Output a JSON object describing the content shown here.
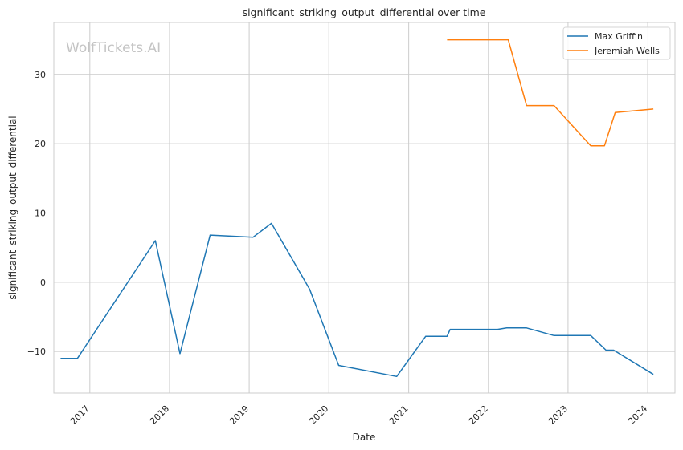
{
  "chart_data": {
    "type": "line",
    "title": "significant_striking_output_differential over time",
    "xlabel": "Date",
    "ylabel": "significant_striking_output_differential",
    "watermark": "WolfTickets.AI",
    "x_tick_labels": [
      "2017",
      "2018",
      "2019",
      "2020",
      "2021",
      "2022",
      "2023",
      "2024"
    ],
    "y_tick_labels": [
      "−10",
      "0",
      "10",
      "20",
      "30"
    ],
    "y_ticks": [
      -10,
      0,
      10,
      20,
      30
    ],
    "xlim": [
      "2016-07-20",
      "2024-05-05"
    ],
    "ylim": [
      -16.0,
      37.5
    ],
    "grid": true,
    "legend_position": "top-right",
    "series": [
      {
        "name": "Max Griffin",
        "color": "#1f77b4",
        "points": [
          [
            "2016-08-20",
            -11.0
          ],
          [
            "2016-11-05",
            -11.0
          ],
          [
            "2017-10-28",
            6.0
          ],
          [
            "2018-02-18",
            -10.3
          ],
          [
            "2018-07-06",
            6.8
          ],
          [
            "2019-01-19",
            6.5
          ],
          [
            "2019-04-13",
            8.5
          ],
          [
            "2019-10-05",
            -1.0
          ],
          [
            "2020-02-15",
            -12.0
          ],
          [
            "2020-11-07",
            -13.6
          ],
          [
            "2021-03-20",
            -7.8
          ],
          [
            "2021-06-26",
            -7.8
          ],
          [
            "2021-07-10",
            -6.8
          ],
          [
            "2022-02-12",
            -6.8
          ],
          [
            "2022-03-26",
            -6.6
          ],
          [
            "2022-06-25",
            -6.6
          ],
          [
            "2022-10-29",
            -7.7
          ],
          [
            "2023-04-15",
            -7.7
          ],
          [
            "2023-06-24",
            -9.8
          ],
          [
            "2023-07-29",
            -9.8
          ],
          [
            "2024-01-27",
            -13.3
          ]
        ]
      },
      {
        "name": "Jeremiah Wells",
        "color": "#ff7f0e",
        "points": [
          [
            "2021-06-26",
            35.0
          ],
          [
            "2022-04-02",
            35.0
          ],
          [
            "2022-06-25",
            25.5
          ],
          [
            "2022-10-29",
            25.5
          ],
          [
            "2023-04-15",
            19.7
          ],
          [
            "2023-06-17",
            19.7
          ],
          [
            "2023-08-05",
            24.5
          ],
          [
            "2024-01-27",
            25.0
          ]
        ]
      }
    ]
  }
}
